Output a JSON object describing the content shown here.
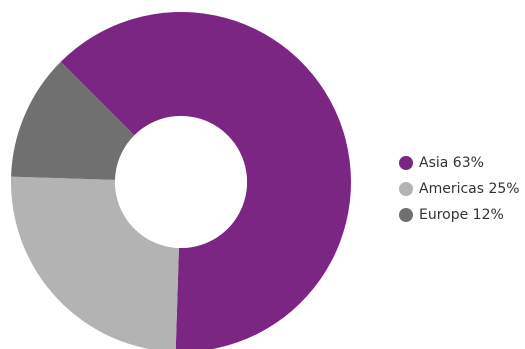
{
  "chart_data": {
    "type": "pie",
    "donut": true,
    "slices": [
      {
        "label": "Asia",
        "value": 63,
        "color": "#7b2682"
      },
      {
        "label": "Americas",
        "value": 25,
        "color": "#b3b3b3"
      },
      {
        "label": "Europe",
        "value": 12,
        "color": "#707070"
      }
    ],
    "legend": {
      "position": "right",
      "items": [
        {
          "text": "Asia 63%",
          "color": "#7b2682"
        },
        {
          "text": "Americas 25%",
          "color": "#b3b3b3"
        },
        {
          "text": "Europe 12%",
          "color": "#707070"
        }
      ]
    }
  }
}
